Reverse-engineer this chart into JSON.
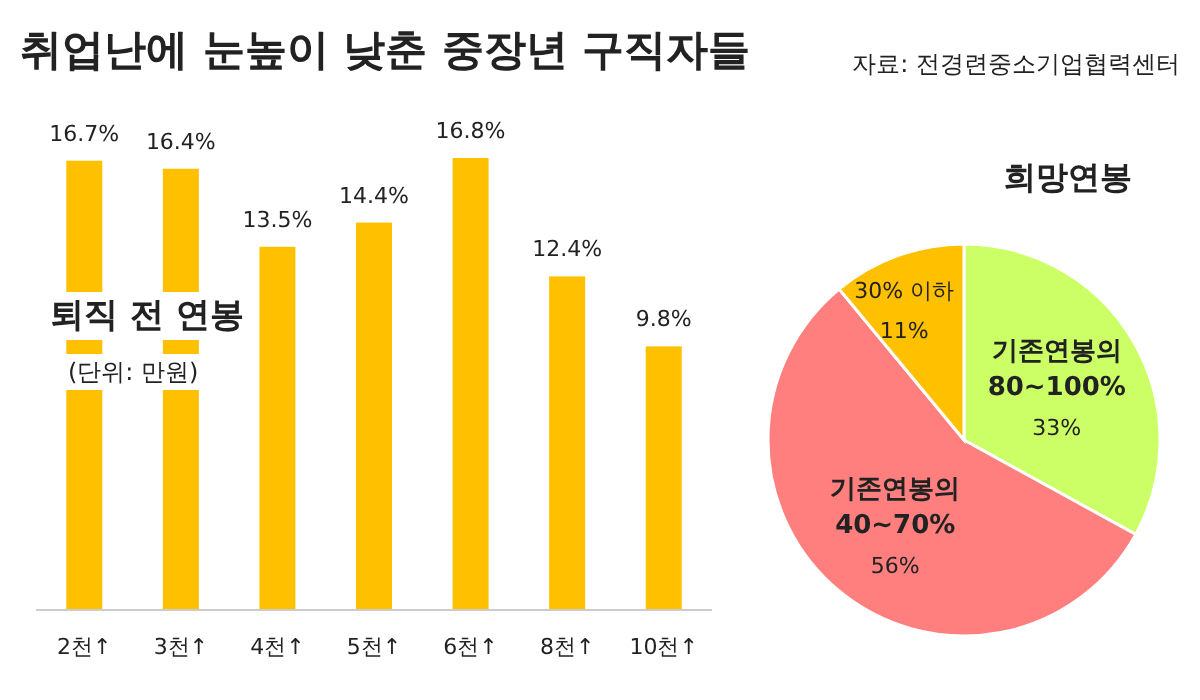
{
  "chart_data": [
    {
      "type": "bar",
      "title": "취업난에 눈높이 낮춘 중장년 구직자들",
      "subtitle": "퇴직 전 연봉",
      "annotations": [
        "(단위: 만원)"
      ],
      "categories": [
        "2천↑",
        "3천↑",
        "4천↑",
        "5천↑",
        "6천↑",
        "8천↑",
        "10천↑"
      ],
      "values": [
        16.7,
        16.4,
        13.5,
        14.4,
        16.8,
        12.4,
        9.8
      ],
      "value_labels": [
        "16.7%",
        "16.4%",
        "13.5%",
        "14.4%",
        "16.8%",
        "12.4%",
        "9.8%"
      ],
      "color": "#ffc000"
    },
    {
      "type": "pie",
      "title": "희망연봉",
      "annotations": [
        "자료: 전경련중소기업협력센터"
      ],
      "categories": [
        "기존연봉의\n80~100%",
        "기존연봉의\n40~70%",
        "30% 이하"
      ],
      "values": [
        33,
        56,
        11
      ],
      "value_labels": [
        "33%",
        "56%",
        "11%"
      ],
      "colors": [
        "#ccff66",
        "#ff7f7f",
        "#ffc000"
      ]
    }
  ]
}
